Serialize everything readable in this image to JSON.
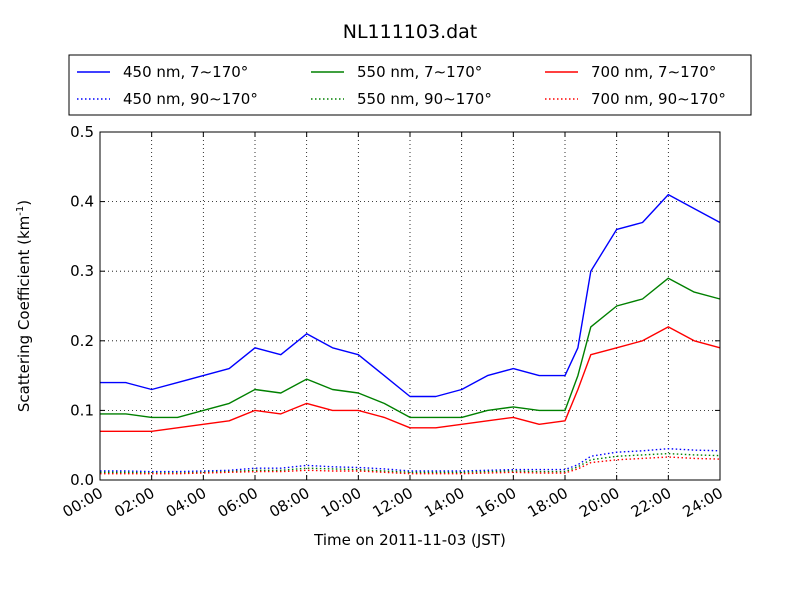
{
  "chart_data": {
    "type": "line",
    "title": "NL111103.dat",
    "xlabel": "Time on 2011-11-03 (JST)",
    "ylabel": "Scattering Coefficient (km",
    "ylabel_sup": "-1",
    "ylabel_close": ")",
    "xlim": [
      "00:00",
      "24:00"
    ],
    "ylim": [
      0.0,
      0.5
    ],
    "x_ticks": [
      "00:00",
      "02:00",
      "04:00",
      "06:00",
      "08:00",
      "10:00",
      "12:00",
      "14:00",
      "16:00",
      "18:00",
      "20:00",
      "22:00",
      "24:00"
    ],
    "y_ticks": [
      "0.0",
      "0.1",
      "0.2",
      "0.3",
      "0.4",
      "0.5"
    ],
    "grid": true,
    "legend_position": "top",
    "x": [
      "00:00",
      "01:00",
      "02:00",
      "03:00",
      "04:00",
      "05:00",
      "06:00",
      "07:00",
      "08:00",
      "09:00",
      "10:00",
      "11:00",
      "12:00",
      "13:00",
      "14:00",
      "15:00",
      "16:00",
      "17:00",
      "18:00",
      "18:30",
      "19:00",
      "20:00",
      "21:00",
      "22:00",
      "23:00",
      "24:00"
    ],
    "series": [
      {
        "name": "450 nm, 7∼170°",
        "color": "#0000ff",
        "style": "solid",
        "values": [
          0.14,
          0.14,
          0.13,
          0.14,
          0.15,
          0.16,
          0.19,
          0.18,
          0.21,
          0.19,
          0.18,
          0.15,
          0.12,
          0.12,
          0.13,
          0.15,
          0.16,
          0.15,
          0.15,
          0.19,
          0.3,
          0.36,
          0.37,
          0.41,
          0.39,
          0.37
        ]
      },
      {
        "name": "550 nm, 7∼170°",
        "color": "#008000",
        "style": "solid",
        "values": [
          0.095,
          0.095,
          0.09,
          0.09,
          0.1,
          0.11,
          0.13,
          0.125,
          0.145,
          0.13,
          0.125,
          0.11,
          0.09,
          0.09,
          0.09,
          0.1,
          0.105,
          0.1,
          0.1,
          0.15,
          0.22,
          0.25,
          0.26,
          0.29,
          0.27,
          0.26
        ]
      },
      {
        "name": "700 nm, 7∼170°",
        "color": "#ff0000",
        "style": "solid",
        "values": [
          0.07,
          0.07,
          0.07,
          0.075,
          0.08,
          0.085,
          0.1,
          0.095,
          0.11,
          0.1,
          0.1,
          0.09,
          0.075,
          0.075,
          0.08,
          0.085,
          0.09,
          0.08,
          0.085,
          0.13,
          0.18,
          0.19,
          0.2,
          0.22,
          0.2,
          0.19
        ]
      },
      {
        "name": "450 nm, 90∼170°",
        "color": "#0000ff",
        "style": "dotted",
        "values": [
          0.013,
          0.013,
          0.012,
          0.012,
          0.013,
          0.014,
          0.017,
          0.017,
          0.021,
          0.019,
          0.018,
          0.016,
          0.013,
          0.013,
          0.013,
          0.014,
          0.015,
          0.015,
          0.015,
          0.022,
          0.034,
          0.04,
          0.042,
          0.045,
          0.043,
          0.042
        ]
      },
      {
        "name": "550 nm, 90∼170°",
        "color": "#008000",
        "style": "dotted",
        "values": [
          0.011,
          0.011,
          0.01,
          0.01,
          0.011,
          0.012,
          0.014,
          0.014,
          0.017,
          0.016,
          0.015,
          0.013,
          0.011,
          0.011,
          0.011,
          0.012,
          0.013,
          0.012,
          0.012,
          0.019,
          0.029,
          0.034,
          0.036,
          0.038,
          0.036,
          0.035
        ]
      },
      {
        "name": "700 nm, 90∼170°",
        "color": "#ff0000",
        "style": "dotted",
        "values": [
          0.009,
          0.009,
          0.009,
          0.009,
          0.01,
          0.011,
          0.012,
          0.012,
          0.014,
          0.013,
          0.013,
          0.011,
          0.009,
          0.009,
          0.009,
          0.01,
          0.011,
          0.01,
          0.01,
          0.016,
          0.025,
          0.029,
          0.031,
          0.033,
          0.031,
          0.03
        ]
      }
    ]
  }
}
